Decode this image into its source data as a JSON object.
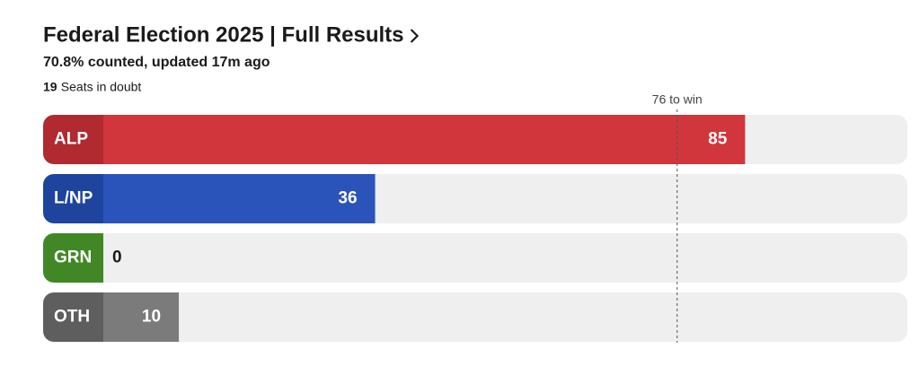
{
  "chart_data": {
    "type": "bar",
    "orientation": "horizontal",
    "title": "Federal Election 2025 | Full Results",
    "subtitle": "70.8% counted, updated 17m ago",
    "seats_in_doubt": 19,
    "seats_in_doubt_label": "Seats in doubt",
    "threshold": {
      "value": 76,
      "label": "76 to win"
    },
    "categories": [
      "ALP",
      "L/NP",
      "GRN",
      "OTH"
    ],
    "values": [
      85,
      36,
      0,
      10
    ],
    "colors": [
      "#d0363b",
      "#2a54b9",
      "#55a22f",
      "#7b7b7b"
    ],
    "label_colors": [
      "#b02a30",
      "#1e449e",
      "#418726",
      "#5e5e5e"
    ],
    "xlim": [
      0,
      106.5
    ]
  }
}
